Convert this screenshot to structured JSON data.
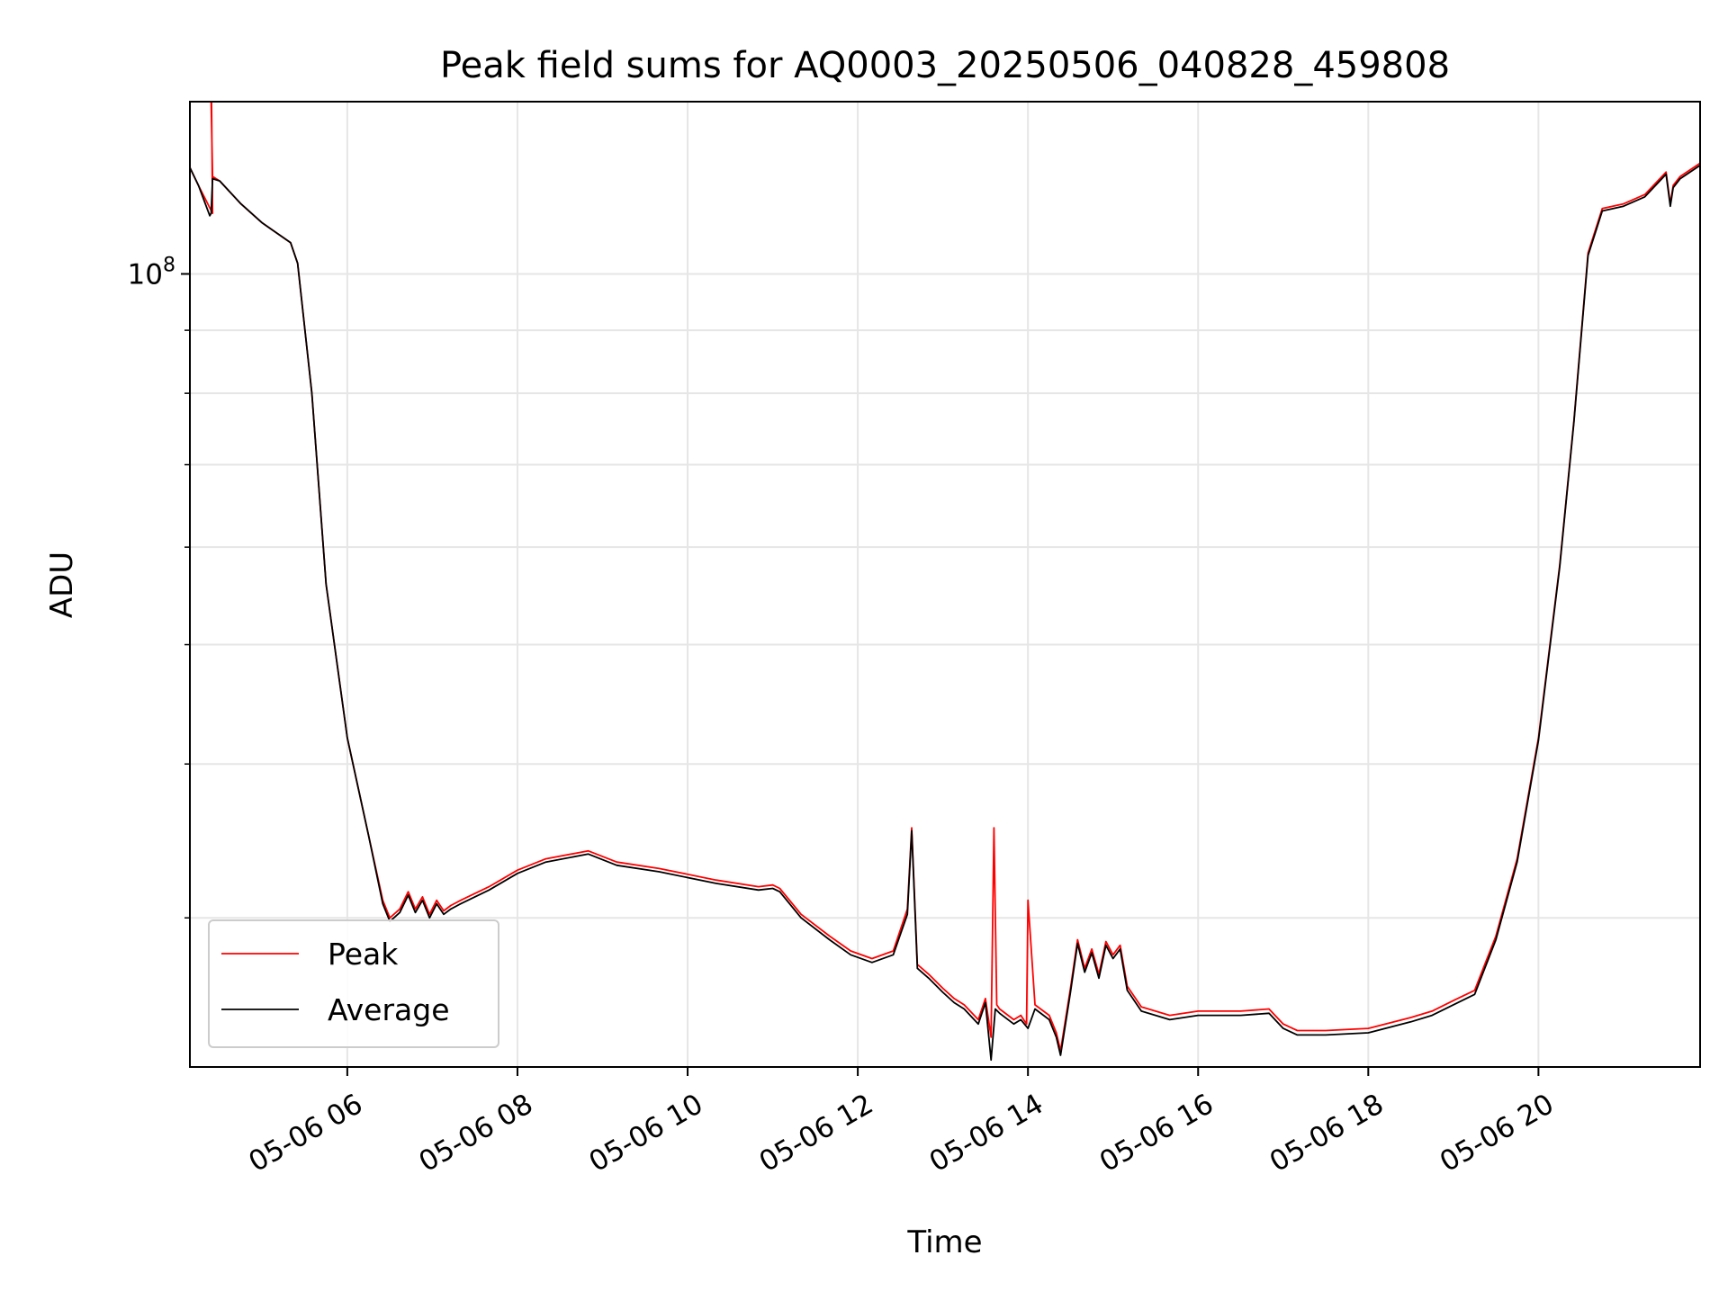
{
  "chart_data": {
    "type": "line",
    "title": "Peak field sums for AQ0003_20250506_040828_459808",
    "xlabel": "Time",
    "ylabel": "ADU",
    "y_scale": "log",
    "grid": true,
    "legend_position": "lower-left",
    "xlim": [
      "2025-05-06 04:09",
      "2025-05-06 21:54"
    ],
    "ylim": [
      22700000,
      138000000
    ],
    "x_ticks": [
      "2025-05-06 06:00",
      "2025-05-06 08:00",
      "2025-05-06 10:00",
      "2025-05-06 12:00",
      "2025-05-06 14:00",
      "2025-05-06 16:00",
      "2025-05-06 18:00",
      "2025-05-06 20:00"
    ],
    "x_tick_labels": [
      "05-06 06",
      "05-06 08",
      "05-06 10",
      "05-06 12",
      "05-06 14",
      "05-06 16",
      "05-06 18",
      "05-06 20"
    ],
    "y_major_tick": {
      "value": 100000000,
      "base": "10",
      "exponent": "8"
    },
    "y_minor_ticks": [
      30000000,
      40000000,
      50000000,
      60000000,
      70000000,
      80000000,
      90000000
    ],
    "series": [
      {
        "name": "Peak",
        "color": "#ff0000",
        "x": [
          "2025-05-06 04:09",
          "2025-05-06 04:15",
          "2025-05-06 04:25",
          "2025-05-06 04:24",
          "2025-05-06 04:24",
          "2025-05-06 04:25",
          "2025-05-06 04:30",
          "2025-05-06 04:45",
          "2025-05-06 05:00",
          "2025-05-06 05:20",
          "2025-05-06 05:25",
          "2025-05-06 05:35",
          "2025-05-06 05:45",
          "2025-05-06 06:00",
          "2025-05-06 06:15",
          "2025-05-06 06:25",
          "2025-05-06 06:30",
          "2025-05-06 06:37",
          "2025-05-06 06:43",
          "2025-05-06 06:48",
          "2025-05-06 06:53",
          "2025-05-06 06:58",
          "2025-05-06 07:03",
          "2025-05-06 07:08",
          "2025-05-06 07:13",
          "2025-05-06 07:20",
          "2025-05-06 07:40",
          "2025-05-06 08:00",
          "2025-05-06 08:20",
          "2025-05-06 08:50",
          "2025-05-06 09:10",
          "2025-05-06 09:40",
          "2025-05-06 10:20",
          "2025-05-06 10:50",
          "2025-05-06 11:00",
          "2025-05-06 11:05",
          "2025-05-06 11:20",
          "2025-05-06 11:40",
          "2025-05-06 11:55",
          "2025-05-06 12:10",
          "2025-05-06 12:25",
          "2025-05-06 12:35",
          "2025-05-06 12:38",
          "2025-05-06 12:42",
          "2025-05-06 12:50",
          "2025-05-06 13:00",
          "2025-05-06 13:08",
          "2025-05-06 13:15",
          "2025-05-06 13:25",
          "2025-05-06 13:30",
          "2025-05-06 13:34",
          "2025-05-06 13:36",
          "2025-05-06 13:38",
          "2025-05-06 13:40",
          "2025-05-06 13:50",
          "2025-05-06 13:55",
          "2025-05-06 13:59",
          "2025-05-06 14:00",
          "2025-05-06 14:05",
          "2025-05-06 14:15",
          "2025-05-06 14:20",
          "2025-05-06 14:23",
          "2025-05-06 14:30",
          "2025-05-06 14:35",
          "2025-05-06 14:40",
          "2025-05-06 14:45",
          "2025-05-06 14:50",
          "2025-05-06 14:55",
          "2025-05-06 15:00",
          "2025-05-06 15:05",
          "2025-05-06 15:10",
          "2025-05-06 15:20",
          "2025-05-06 15:40",
          "2025-05-06 16:00",
          "2025-05-06 16:30",
          "2025-05-06 16:50",
          "2025-05-06 17:00",
          "2025-05-06 17:10",
          "2025-05-06 17:30",
          "2025-05-06 18:00",
          "2025-05-06 18:30",
          "2025-05-06 18:45",
          "2025-05-06 19:00",
          "2025-05-06 19:15",
          "2025-05-06 19:30",
          "2025-05-06 19:45",
          "2025-05-06 20:00",
          "2025-05-06 20:15",
          "2025-05-06 20:25",
          "2025-05-06 20:35",
          "2025-05-06 20:45",
          "2025-05-06 21:00",
          "2025-05-06 21:15",
          "2025-05-06 21:30",
          "2025-05-06 21:33",
          "2025-05-06 21:35",
          "2025-05-06 21:40",
          "2025-05-06 21:54"
        ],
        "y": [
          122000000,
          118000000,
          112000000,
          150000000,
          138000000,
          120000000,
          119000000,
          114000000,
          110000000,
          106000000,
          102000000,
          80000000,
          56000000,
          42000000,
          35000000,
          31000000,
          30000000,
          30500000,
          31500000,
          30500000,
          31200000,
          30200000,
          31000000,
          30400000,
          30700000,
          31000000,
          31800000,
          32800000,
          33500000,
          34000000,
          33300000,
          32900000,
          32200000,
          31800000,
          31900000,
          31700000,
          30200000,
          29000000,
          28200000,
          27800000,
          28200000,
          30500000,
          35500000,
          27500000,
          27000000,
          26300000,
          25800000,
          25500000,
          24800000,
          25800000,
          24000000,
          35500000,
          25500000,
          25300000,
          24800000,
          25000000,
          24600000,
          31000000,
          25500000,
          25000000,
          24200000,
          23400000,
          26300000,
          28800000,
          27300000,
          28300000,
          27000000,
          28700000,
          28000000,
          28500000,
          26400000,
          25400000,
          25000000,
          25200000,
          25200000,
          25300000,
          24600000,
          24300000,
          24300000,
          24400000,
          24900000,
          25200000,
          25700000,
          26200000,
          29000000,
          33500000,
          42000000,
          58000000,
          76000000,
          104000000,
          113000000,
          114000000,
          116000000,
          121000000,
          114000000,
          118000000,
          120000000,
          123000000
        ]
      },
      {
        "name": "Average",
        "color": "#000000",
        "x": [
          "2025-05-06 04:09",
          "2025-05-06 04:15",
          "2025-05-06 04:23",
          "2025-05-06 04:24",
          "2025-05-06 04:25",
          "2025-05-06 04:30",
          "2025-05-06 04:45",
          "2025-05-06 05:00",
          "2025-05-06 05:20",
          "2025-05-06 05:25",
          "2025-05-06 05:35",
          "2025-05-06 05:45",
          "2025-05-06 06:00",
          "2025-05-06 06:15",
          "2025-05-06 06:25",
          "2025-05-06 06:30",
          "2025-05-06 06:37",
          "2025-05-06 06:43",
          "2025-05-06 06:48",
          "2025-05-06 06:53",
          "2025-05-06 06:58",
          "2025-05-06 07:03",
          "2025-05-06 07:08",
          "2025-05-06 07:13",
          "2025-05-06 07:20",
          "2025-05-06 07:40",
          "2025-05-06 08:00",
          "2025-05-06 08:20",
          "2025-05-06 08:50",
          "2025-05-06 09:10",
          "2025-05-06 09:40",
          "2025-05-06 10:20",
          "2025-05-06 10:50",
          "2025-05-06 11:00",
          "2025-05-06 11:05",
          "2025-05-06 11:20",
          "2025-05-06 11:40",
          "2025-05-06 11:55",
          "2025-05-06 12:10",
          "2025-05-06 12:25",
          "2025-05-06 12:35",
          "2025-05-06 12:38",
          "2025-05-06 12:42",
          "2025-05-06 12:50",
          "2025-05-06 13:00",
          "2025-05-06 13:08",
          "2025-05-06 13:15",
          "2025-05-06 13:25",
          "2025-05-06 13:30",
          "2025-05-06 13:34",
          "2025-05-06 13:37",
          "2025-05-06 13:40",
          "2025-05-06 13:50",
          "2025-05-06 13:55",
          "2025-05-06 14:00",
          "2025-05-06 14:05",
          "2025-05-06 14:15",
          "2025-05-06 14:20",
          "2025-05-06 14:23",
          "2025-05-06 14:30",
          "2025-05-06 14:35",
          "2025-05-06 14:40",
          "2025-05-06 14:45",
          "2025-05-06 14:50",
          "2025-05-06 14:55",
          "2025-05-06 15:00",
          "2025-05-06 15:05",
          "2025-05-06 15:10",
          "2025-05-06 15:20",
          "2025-05-06 15:40",
          "2025-05-06 16:00",
          "2025-05-06 16:30",
          "2025-05-06 16:50",
          "2025-05-06 17:00",
          "2025-05-06 17:10",
          "2025-05-06 17:30",
          "2025-05-06 18:00",
          "2025-05-06 18:30",
          "2025-05-06 18:45",
          "2025-05-06 19:00",
          "2025-05-06 19:15",
          "2025-05-06 19:30",
          "2025-05-06 19:45",
          "2025-05-06 20:00",
          "2025-05-06 20:15",
          "2025-05-06 20:25",
          "2025-05-06 20:35",
          "2025-05-06 20:45",
          "2025-05-06 21:00",
          "2025-05-06 21:15",
          "2025-05-06 21:30",
          "2025-05-06 21:33",
          "2025-05-06 21:35",
          "2025-05-06 21:40",
          "2025-05-06 21:54"
        ],
        "y": [
          122000000,
          118000000,
          111500000,
          112000000,
          119500000,
          119000000,
          114000000,
          110000000,
          106000000,
          102000000,
          80000000,
          56000000,
          42000000,
          35000000,
          30800000,
          29800000,
          30300000,
          31300000,
          30300000,
          31000000,
          30000000,
          30800000,
          30200000,
          30500000,
          30800000,
          31600000,
          32600000,
          33300000,
          33800000,
          33100000,
          32700000,
          32000000,
          31600000,
          31700000,
          31500000,
          30000000,
          28800000,
          28000000,
          27600000,
          28000000,
          30200000,
          35300000,
          27300000,
          26800000,
          26100000,
          25600000,
          25300000,
          24600000,
          25600000,
          23000000,
          25300000,
          25100000,
          24600000,
          24800000,
          24400000,
          25300000,
          24800000,
          24000000,
          23200000,
          26100000,
          28600000,
          27100000,
          28100000,
          26800000,
          28500000,
          27800000,
          28300000,
          26200000,
          25200000,
          24800000,
          25000000,
          25000000,
          25100000,
          24400000,
          24100000,
          24100000,
          24200000,
          24700000,
          25000000,
          25500000,
          26000000,
          28800000,
          33300000,
          41800000,
          57800000,
          75800000,
          103500000,
          112500000,
          113500000,
          115500000,
          120500000,
          113500000,
          117500000,
          119500000,
          122500000
        ]
      }
    ]
  }
}
